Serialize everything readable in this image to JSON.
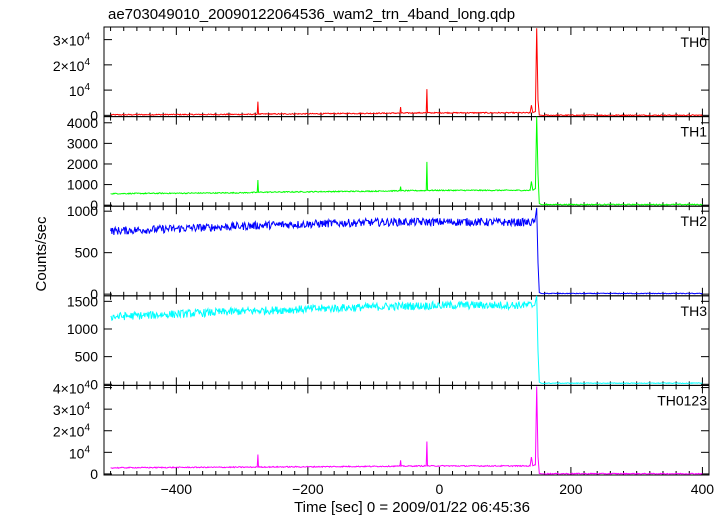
{
  "title": "ae703049010_20090122064536_wam2_trn_4band_long.qdp",
  "xlabel": "Time [sec] 0 = 2009/01/22 06:45:36",
  "ylabel": "Counts/sec",
  "chart_data": [
    {
      "type": "line",
      "panel": "TH0",
      "color": "#ff0000",
      "xlim": [
        -510,
        410
      ],
      "ylim": [
        -500,
        35000
      ],
      "x_ticks": [
        -400,
        -200,
        0,
        200,
        400
      ],
      "y_ticks": [
        {
          "v": 0,
          "label": "0"
        },
        {
          "v": 10000,
          "label": "10",
          "exp": "4"
        },
        {
          "v": 20000,
          "label": "2×10",
          "exp": "4"
        },
        {
          "v": 30000,
          "label": "3×10",
          "exp": "4"
        }
      ],
      "x": [
        -500,
        -465,
        -400,
        -277,
        -276,
        -275,
        -200,
        -155,
        -100,
        -60,
        -59,
        -58,
        -20,
        -19,
        -18,
        50,
        100,
        138,
        140,
        142,
        146,
        148,
        150,
        152,
        155,
        200,
        300,
        400
      ],
      "y": [
        200,
        250,
        300,
        400,
        5400,
        500,
        600,
        700,
        800,
        900,
        3300,
        900,
        1000,
        10400,
        1000,
        1000,
        1000,
        1000,
        4000,
        1100,
        1500,
        34500,
        6000,
        150,
        40,
        40,
        40,
        40
      ]
    },
    {
      "type": "line",
      "panel": "TH1",
      "color": "#00ff00",
      "xlim": [
        -510,
        410
      ],
      "ylim": [
        -50,
        4300
      ],
      "x_ticks": [
        -400,
        -200,
        0,
        200,
        400
      ],
      "y_ticks": [
        {
          "v": 0,
          "label": "0"
        },
        {
          "v": 1000,
          "label": "1000"
        },
        {
          "v": 2000,
          "label": "2000"
        },
        {
          "v": 3000,
          "label": "3000"
        },
        {
          "v": 4000,
          "label": "4000"
        }
      ],
      "x": [
        -500,
        -400,
        -300,
        -277,
        -276,
        -275,
        -200,
        -100,
        -60,
        -59,
        -58,
        -20,
        -19,
        -18,
        50,
        100,
        138,
        140,
        142,
        146,
        148,
        150,
        152,
        155,
        200,
        300,
        400
      ],
      "y": [
        560,
        580,
        600,
        620,
        1220,
        630,
        650,
        680,
        700,
        900,
        700,
        710,
        2100,
        720,
        720,
        720,
        720,
        1150,
        730,
        800,
        4300,
        1500,
        80,
        30,
        30,
        30,
        30
      ]
    },
    {
      "type": "line",
      "panel": "TH2",
      "color": "#0000ff",
      "xlim": [
        -510,
        410
      ],
      "ylim": [
        -20,
        1060
      ],
      "x_ticks": [
        -400,
        -200,
        0,
        200,
        400
      ],
      "y_ticks": [
        {
          "v": 0,
          "label": "0"
        },
        {
          "v": 500,
          "label": "500"
        },
        {
          "v": 1000,
          "label": "1000"
        }
      ],
      "x": [
        -500,
        -450,
        -400,
        -350,
        -300,
        -250,
        -200,
        -150,
        -100,
        -50,
        0,
        50,
        100,
        145,
        148,
        150,
        152,
        155,
        200,
        300,
        400
      ],
      "y": [
        760,
        775,
        790,
        805,
        820,
        835,
        845,
        855,
        865,
        870,
        870,
        870,
        865,
        865,
        1040,
        380,
        20,
        8,
        8,
        8,
        8
      ]
    },
    {
      "type": "line",
      "panel": "TH3",
      "color": "#00ffff",
      "xlim": [
        -510,
        410
      ],
      "ylim": [
        -20,
        1600
      ],
      "x_ticks": [
        -400,
        -200,
        0,
        200,
        400
      ],
      "y_ticks": [
        {
          "v": 0,
          "label": "0"
        },
        {
          "v": 500,
          "label": "500"
        },
        {
          "v": 1000,
          "label": "1000"
        },
        {
          "v": 1500,
          "label": "1500"
        }
      ],
      "x": [
        -500,
        -450,
        -400,
        -350,
        -300,
        -250,
        -200,
        -150,
        -100,
        -50,
        0,
        50,
        100,
        145,
        148,
        150,
        152,
        155,
        200,
        300,
        400
      ],
      "y": [
        1220,
        1245,
        1270,
        1295,
        1320,
        1340,
        1360,
        1380,
        1400,
        1415,
        1425,
        1430,
        1430,
        1430,
        1600,
        600,
        40,
        20,
        20,
        20,
        20
      ]
    },
    {
      "type": "line",
      "panel": "TH0123",
      "color": "#ff00ff",
      "xlim": [
        -510,
        410
      ],
      "ylim": [
        -500,
        41000
      ],
      "x_ticks": [
        -400,
        -200,
        0,
        200,
        400
      ],
      "y_ticks": [
        {
          "v": 0,
          "label": "0"
        },
        {
          "v": 10000,
          "label": "10",
          "exp": "4"
        },
        {
          "v": 20000,
          "label": "2×10",
          "exp": "4"
        },
        {
          "v": 30000,
          "label": "3×10",
          "exp": "4"
        },
        {
          "v": 40000,
          "label": "4×10",
          "exp": "4"
        }
      ],
      "x": [
        -500,
        -465,
        -400,
        -277,
        -276,
        -275,
        -200,
        -155,
        -100,
        -60,
        -59,
        -58,
        -20,
        -19,
        -18,
        50,
        100,
        138,
        140,
        142,
        146,
        148,
        150,
        152,
        155,
        200,
        300,
        400
      ],
      "y": [
        2800,
        2900,
        3000,
        3150,
        9000,
        3200,
        3300,
        3400,
        3500,
        3600,
        6300,
        3600,
        3700,
        15000,
        3700,
        3700,
        3700,
        3700,
        7800,
        3800,
        4200,
        40500,
        8000,
        250,
        100,
        100,
        100,
        100
      ]
    }
  ]
}
